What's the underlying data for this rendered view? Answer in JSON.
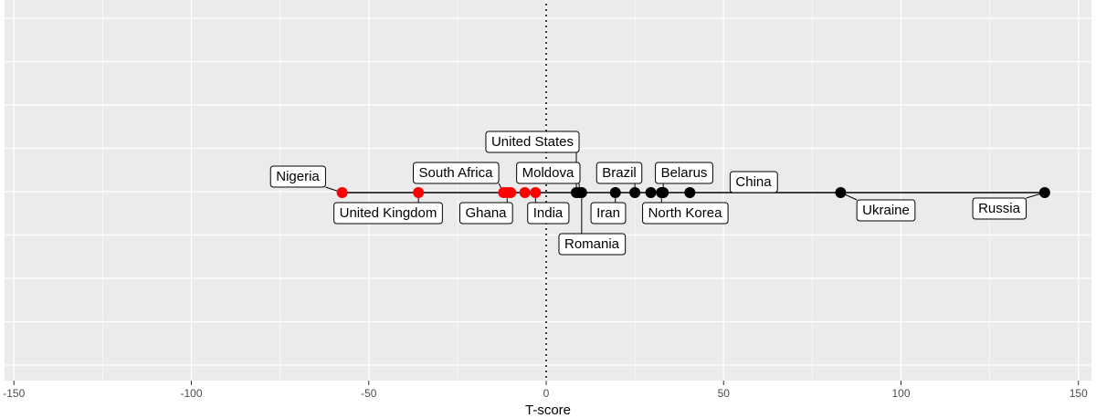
{
  "chart_data": {
    "type": "scatter",
    "title": "",
    "xlabel": "T-score",
    "ylabel": "",
    "xlim": [
      -152,
      152
    ],
    "x_ticks": [
      -150,
      -100,
      -50,
      0,
      50,
      100,
      150
    ],
    "x_tick_labels": [
      "-150",
      "-100",
      "-50",
      "0",
      "50",
      "100",
      "150"
    ],
    "grid": true,
    "reference_line": {
      "x": 0,
      "style": "dotted"
    },
    "colors": {
      "panel": "#ebebeb",
      "grid": "#ffffff",
      "negative": "#ff0000",
      "positive": "#000000",
      "segment": "#000000"
    },
    "points": [
      {
        "label": "Nigeria",
        "x": -57.5,
        "group": "negative",
        "labeled": true
      },
      {
        "label": "United Kingdom",
        "x": -36,
        "group": "negative",
        "labeled": true
      },
      {
        "label": "South Africa",
        "x": -12,
        "group": "negative",
        "labeled": true
      },
      {
        "label": "Ghana",
        "x": -11,
        "group": "negative",
        "labeled": true
      },
      {
        "label": "",
        "x": -10,
        "group": "negative",
        "labeled": false
      },
      {
        "label": "",
        "x": -6,
        "group": "negative",
        "labeled": false
      },
      {
        "label": "India",
        "x": -3,
        "group": "negative",
        "labeled": true
      },
      {
        "label": "United States",
        "x": 8.5,
        "group": "positive",
        "labeled": true
      },
      {
        "label": "Moldova",
        "x": 9.3,
        "group": "positive",
        "labeled": true
      },
      {
        "label": "Romania",
        "x": 10,
        "group": "positive",
        "labeled": true
      },
      {
        "label": "Iran",
        "x": 19.5,
        "group": "positive",
        "labeled": true
      },
      {
        "label": "Brazil",
        "x": 25,
        "group": "positive",
        "labeled": true
      },
      {
        "label": "",
        "x": 29.5,
        "group": "positive",
        "labeled": false
      },
      {
        "label": "North Korea",
        "x": 32.5,
        "group": "positive",
        "labeled": true
      },
      {
        "label": "Belarus",
        "x": 33,
        "group": "positive",
        "labeled": true
      },
      {
        "label": "China",
        "x": 40.5,
        "group": "positive",
        "labeled": true
      },
      {
        "label": "Ukraine",
        "x": 83,
        "group": "positive",
        "labeled": true
      },
      {
        "label": "Russia",
        "x": 140.5,
        "group": "positive",
        "labeled": true
      }
    ]
  }
}
